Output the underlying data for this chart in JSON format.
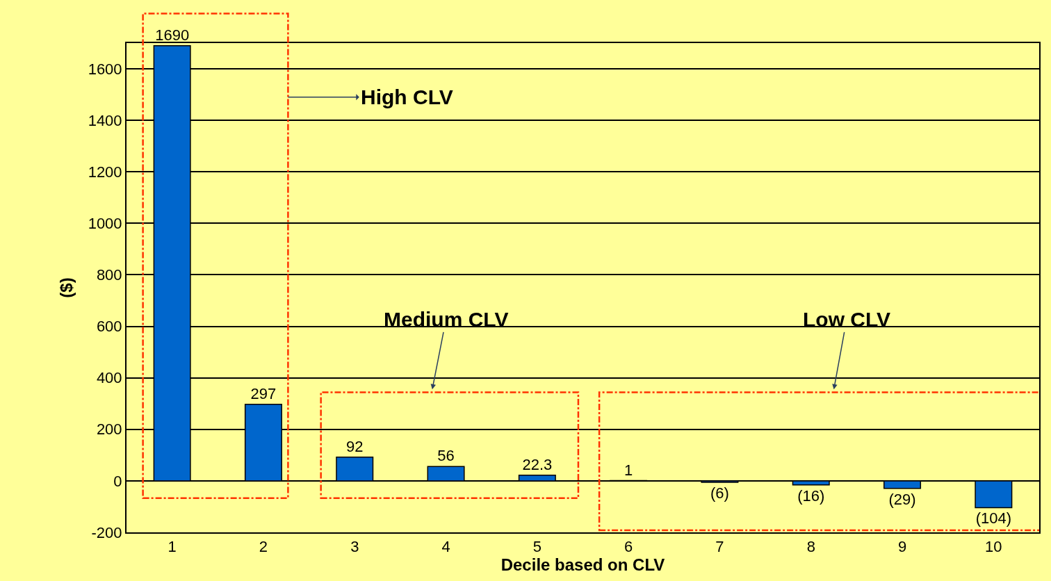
{
  "chart_data": {
    "type": "bar",
    "xlabel": "Decile based on CLV",
    "ylabel": "($)",
    "categories": [
      "1",
      "2",
      "3",
      "4",
      "5",
      "6",
      "7",
      "8",
      "9",
      "10"
    ],
    "values": [
      1690,
      297,
      92,
      56,
      22.3,
      1,
      -6,
      -16,
      -29,
      -104
    ],
    "value_labels": [
      "1690",
      "297",
      "92",
      "56",
      "22.3",
      "1",
      "(6)",
      "(16)",
      "(29)",
      "(104)"
    ],
    "color": "#0066cc",
    "ylim": [
      -200,
      1700
    ],
    "yticks": [
      -200,
      0,
      200,
      400,
      600,
      800,
      1000,
      1200,
      1400,
      1600
    ],
    "grid": "y",
    "legend": false,
    "annotations": [
      "High CLV",
      "Medium CLV",
      "Low CLV"
    ]
  }
}
